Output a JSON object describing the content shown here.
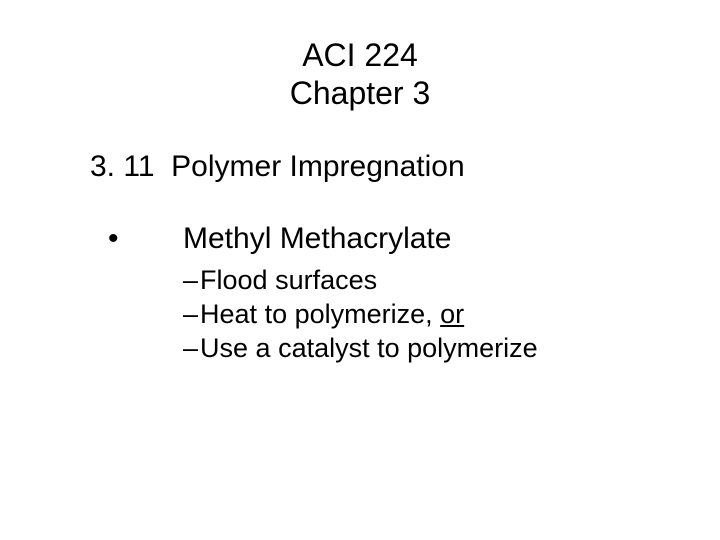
{
  "title": {
    "line1": "ACI 224",
    "line2": "Chapter 3"
  },
  "section": {
    "number": "3. 11",
    "label": "Polymer Impregnation"
  },
  "bullet": {
    "marker": "•",
    "text": "Methyl Methacrylate"
  },
  "sub_items": {
    "dash": "–",
    "item1": "Flood surfaces",
    "item2_pre": "Heat to polymerize, ",
    "item2_underlined": "or",
    "item3": "Use a catalyst to polymerize"
  },
  "style": {
    "background_color": "#ffffff",
    "text_color": "#000000",
    "title_fontsize": 32,
    "section_fontsize": 30,
    "bullet_fontsize": 30,
    "sub_fontsize": 27
  }
}
